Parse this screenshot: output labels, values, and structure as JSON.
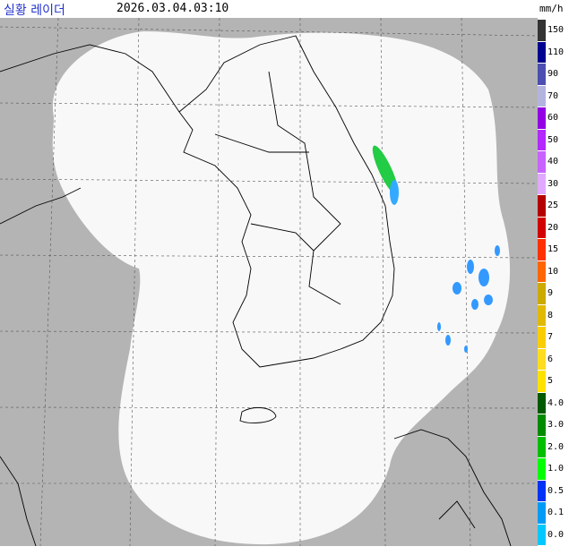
{
  "header": {
    "title": "실황 레이더",
    "time": "2026.03.04.03:10",
    "unit": "mm/h"
  },
  "legend": [
    {
      "label": "150",
      "color": "#333333"
    },
    {
      "label": "110",
      "color": "#000390"
    },
    {
      "label": "90",
      "color": "#4c4eb1"
    },
    {
      "label": "70",
      "color": "#b3b4de"
    },
    {
      "label": "60",
      "color": "#9300e4"
    },
    {
      "label": "50",
      "color": "#b329ff"
    },
    {
      "label": "40",
      "color": "#c963ff"
    },
    {
      "label": "30",
      "color": "#e0a9ff"
    },
    {
      "label": "25",
      "color": "#b40000"
    },
    {
      "label": "20",
      "color": "#d20000"
    },
    {
      "label": "15",
      "color": "#ff3200"
    },
    {
      "label": "10",
      "color": "#ff6600"
    },
    {
      "label": "9",
      "color": "#ccaa00"
    },
    {
      "label": "8",
      "color": "#e0b900"
    },
    {
      "label": "7",
      "color": "#f9cd00"
    },
    {
      "label": "6",
      "color": "#ffdc1f"
    },
    {
      "label": "5",
      "color": "#ffe100"
    },
    {
      "label": "4.0",
      "color": "#005a00"
    },
    {
      "label": "3.0",
      "color": "#008c00"
    },
    {
      "label": "2.0",
      "color": "#00be00"
    },
    {
      "label": "1.0",
      "color": "#00ff00"
    },
    {
      "label": "0.5",
      "color": "#0033f5"
    },
    {
      "label": "0.1",
      "color": "#009bf5"
    },
    {
      "label": "0.0",
      "color": "#00c8ff"
    }
  ]
}
